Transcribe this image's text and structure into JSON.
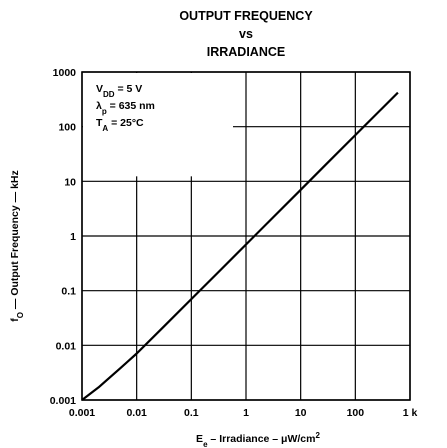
{
  "chart_data": {
    "type": "line",
    "title": [
      "OUTPUT FREQUENCY",
      "vs",
      "IRRADIANCE"
    ],
    "xlabel": {
      "main": "E",
      "sub": "e",
      "rest": " – Irradiance – μW/cm",
      "sup": "2"
    },
    "ylabel": {
      "main": "f",
      "sub": "O",
      "rest": " — Output Frequency — kHz"
    },
    "x_scale": "log",
    "y_scale": "log",
    "xlim": [
      0.001,
      1000
    ],
    "ylim": [
      0.001,
      1000
    ],
    "x_ticks": [
      {
        "value": 0.001,
        "label": "0.001"
      },
      {
        "value": 0.01,
        "label": "0.01"
      },
      {
        "value": 0.1,
        "label": "0.1"
      },
      {
        "value": 1,
        "label": "1"
      },
      {
        "value": 10,
        "label": "10"
      },
      {
        "value": 100,
        "label": "100"
      },
      {
        "value": 1000,
        "label": "1 k"
      }
    ],
    "y_ticks": [
      {
        "value": 0.001,
        "label": "0.001"
      },
      {
        "value": 0.01,
        "label": "0.01"
      },
      {
        "value": 0.1,
        "label": "0.1"
      },
      {
        "value": 1,
        "label": "1"
      },
      {
        "value": 10,
        "label": "10"
      },
      {
        "value": 100,
        "label": "100"
      },
      {
        "value": 1000,
        "label": "1000"
      }
    ],
    "grid": true,
    "annotation": [
      {
        "main": "V",
        "sub": "DD",
        "rest": " = 5 V"
      },
      {
        "main": "λ",
        "sub": "p",
        "rest": " = 635 nm"
      },
      {
        "main": "T",
        "sub": "A",
        "rest": " = 25°C"
      }
    ],
    "series": [
      {
        "x": [
          0.001,
          0.002,
          0.005,
          0.01,
          0.03,
          0.1,
          0.3,
          1,
          3,
          10,
          30,
          100,
          300,
          600
        ],
        "y": [
          0.001,
          0.0017,
          0.0038,
          0.0071,
          0.021,
          0.07,
          0.21,
          0.7,
          2.1,
          7,
          21,
          70,
          210,
          420
        ]
      }
    ]
  }
}
